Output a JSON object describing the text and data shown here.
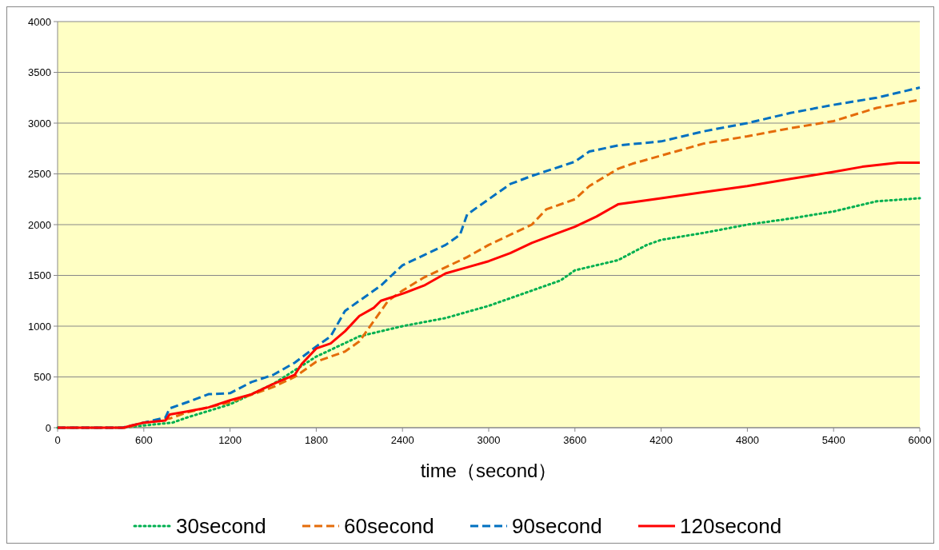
{
  "chart_data": {
    "type": "line",
    "xlabel": "time（second）",
    "xlim": [
      0,
      6000
    ],
    "ylim": [
      0,
      4000
    ],
    "xticks": [
      0,
      600,
      1200,
      1800,
      2400,
      3000,
      3600,
      4200,
      4800,
      5400,
      6000
    ],
    "yticks": [
      0,
      500,
      1000,
      1500,
      2000,
      2500,
      3000,
      3500,
      4000
    ],
    "grid": "y",
    "legend": "bottom",
    "marker": "none",
    "series": [
      {
        "name": "30second",
        "color": "#00b050",
        "line_style": "dotted",
        "x": [
          0,
          450,
          800,
          900,
          1200,
          1500,
          1800,
          2100,
          2400,
          2700,
          3000,
          3300,
          3500,
          3600,
          3900,
          4100,
          4200,
          4500,
          4800,
          5100,
          5400,
          5700,
          6000
        ],
        "values": [
          0,
          0,
          50,
          100,
          230,
          430,
          700,
          900,
          1000,
          1080,
          1200,
          1350,
          1450,
          1550,
          1650,
          1800,
          1850,
          1920,
          2000,
          2060,
          2130,
          2230,
          2260
        ]
      },
      {
        "name": "60second",
        "color": "#e46c0a",
        "line_style": "dashed",
        "x": [
          0,
          480,
          600,
          780,
          900,
          1200,
          1500,
          1650,
          1800,
          2000,
          2100,
          2200,
          2300,
          2400,
          2550,
          2700,
          2850,
          3000,
          3300,
          3400,
          3600,
          3700,
          3900,
          4000,
          4200,
          4500,
          4800,
          5100,
          5400,
          5700,
          6000
        ],
        "values": [
          0,
          0,
          50,
          90,
          150,
          250,
          400,
          500,
          650,
          750,
          850,
          1050,
          1250,
          1350,
          1480,
          1580,
          1680,
          1800,
          2000,
          2150,
          2250,
          2380,
          2550,
          2600,
          2680,
          2800,
          2870,
          2950,
          3020,
          3150,
          3230
        ]
      },
      {
        "name": "90second",
        "color": "#0070c0",
        "line_style": "dashed",
        "x": [
          0,
          450,
          750,
          780,
          900,
          1050,
          1200,
          1350,
          1500,
          1650,
          1800,
          1900,
          2000,
          2100,
          2250,
          2400,
          2550,
          2700,
          2800,
          2850,
          3000,
          3150,
          3300,
          3600,
          3700,
          3900,
          4200,
          4500,
          4800,
          5100,
          5400,
          5700,
          6000
        ],
        "values": [
          0,
          0,
          100,
          190,
          250,
          330,
          340,
          450,
          520,
          640,
          800,
          900,
          1150,
          1250,
          1400,
          1600,
          1700,
          1800,
          1900,
          2100,
          2250,
          2400,
          2480,
          2620,
          2720,
          2780,
          2820,
          2920,
          3000,
          3100,
          3180,
          3250,
          3350
        ]
      },
      {
        "name": "120second",
        "color": "#ff0000",
        "line_style": "solid",
        "x": [
          0,
          460,
          510,
          600,
          750,
          780,
          900,
          1050,
          1200,
          1350,
          1500,
          1650,
          1700,
          1800,
          1900,
          2000,
          2100,
          2200,
          2250,
          2400,
          2550,
          2700,
          2850,
          3000,
          3150,
          3300,
          3450,
          3600,
          3750,
          3900,
          4200,
          4500,
          4800,
          5100,
          5400,
          5600,
          5850,
          6000
        ],
        "values": [
          0,
          0,
          20,
          50,
          70,
          130,
          160,
          200,
          270,
          330,
          430,
          520,
          630,
          780,
          830,
          950,
          1100,
          1180,
          1250,
          1320,
          1400,
          1520,
          1580,
          1640,
          1720,
          1820,
          1900,
          1980,
          2080,
          2200,
          2260,
          2320,
          2380,
          2450,
          2520,
          2570,
          2610,
          2610
        ]
      }
    ]
  }
}
